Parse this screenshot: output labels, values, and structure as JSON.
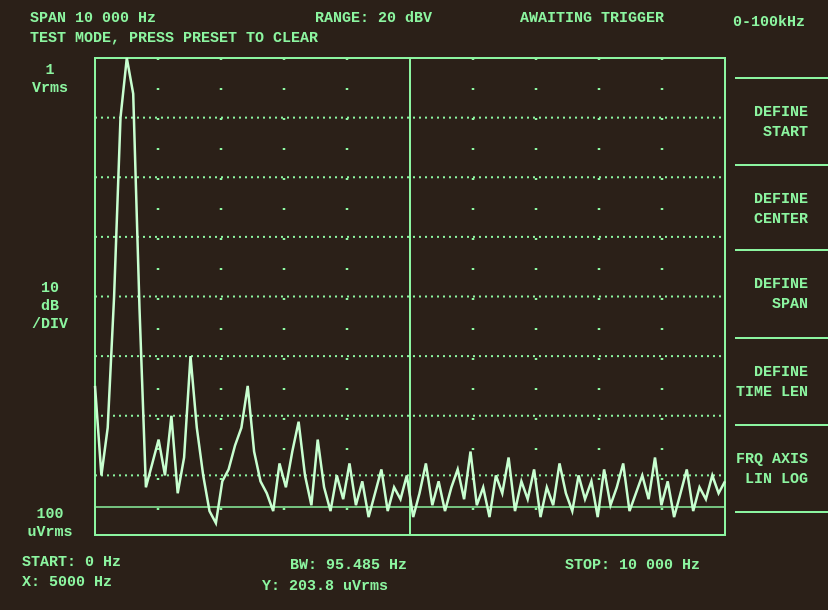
{
  "header": {
    "span": "SPAN 10 000 Hz",
    "range": "RANGE: 20 dBV",
    "status": "AWAITING TRIGGER",
    "band": "0-100kHz",
    "mode": "TEST MODE, PRESS PRESET TO CLEAR"
  },
  "scale": {
    "top": [
      "1",
      "Vrms"
    ],
    "middle": [
      "10",
      "dB",
      "/DIV"
    ],
    "bottom": [
      "100",
      "uVrms"
    ]
  },
  "softkeys": [
    [
      "DEFINE",
      "START"
    ],
    [
      "DEFINE",
      "CENTER"
    ],
    [
      "DEFINE",
      "SPAN"
    ],
    [
      "DEFINE",
      "TIME LEN"
    ],
    [
      "FRQ AXIS",
      "LIN  LOG"
    ]
  ],
  "footer": {
    "start": "START: 0 Hz",
    "bw": "BW: 95.485 Hz",
    "stop": "STOP: 10 000 Hz",
    "x": "X: 5000 Hz",
    "y": "Y: 203.8 uVrms"
  },
  "trace": {
    "ylim": [
      -80,
      0
    ],
    "values": [
      -55,
      -70,
      -62,
      -40,
      -10,
      0,
      -6,
      -42,
      -72,
      -68,
      -64,
      -70,
      -60,
      -73,
      -67,
      -50,
      -62,
      -70,
      -76,
      -78,
      -71,
      -69,
      -65,
      -62,
      -55,
      -66,
      -71,
      -73,
      -76,
      -68,
      -72,
      -66,
      -61,
      -70,
      -75,
      -64,
      -72,
      -76,
      -70,
      -74,
      -68,
      -75,
      -71,
      -77,
      -73,
      -69,
      -76,
      -72,
      -74,
      -70,
      -77,
      -73,
      -68,
      -75,
      -71,
      -76,
      -72,
      -69,
      -74,
      -66,
      -75,
      -72,
      -77,
      -70,
      -73,
      -67,
      -76,
      -71,
      -74,
      -69,
      -77,
      -72,
      -75,
      -68,
      -73,
      -76,
      -70,
      -74,
      -71,
      -77,
      -69,
      -75,
      -72,
      -68,
      -76,
      -73,
      -70,
      -74,
      -67,
      -75,
      -71,
      -77,
      -73,
      -69,
      -76,
      -72,
      -74,
      -70,
      -73,
      -71
    ]
  }
}
